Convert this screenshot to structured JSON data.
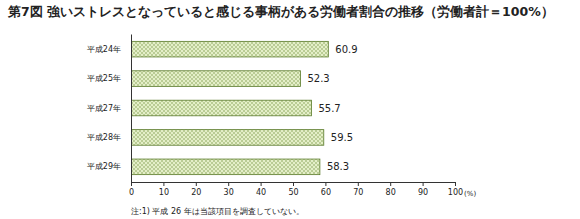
{
  "chart_data": {
    "type": "bar",
    "orientation": "horizontal",
    "title": "第7図 強いストレスとなっていると感じる事柄がある労働者割合の推移（労働者計＝100%）",
    "categories": [
      "平成24年",
      "平成25年",
      "平成27年",
      "平成28年",
      "平成29年"
    ],
    "values": [
      60.9,
      52.3,
      55.7,
      59.5,
      58.3
    ],
    "color": "#e4efc8",
    "xlim": [
      0,
      100
    ],
    "xticks": [
      0,
      10,
      20,
      30,
      40,
      50,
      60,
      70,
      80,
      90,
      100
    ],
    "x_label": "(%)",
    "data_labels": true,
    "grid": false,
    "annotations": [
      "注:1) 平成 26 年は当該項目を調査していない。"
    ]
  }
}
